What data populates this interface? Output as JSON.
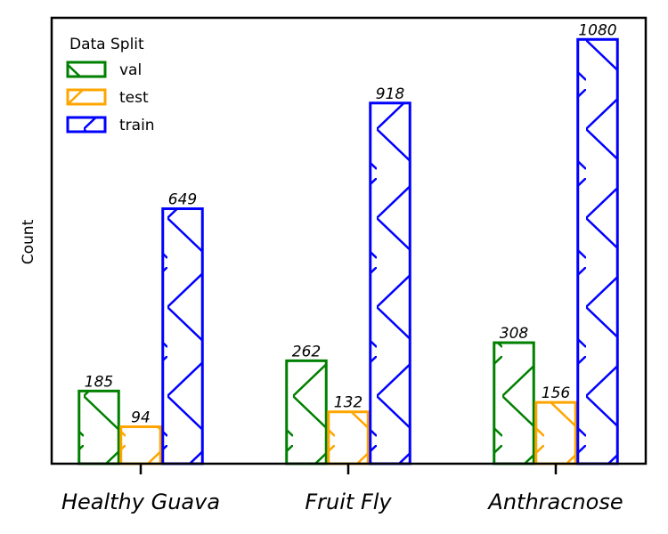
{
  "chart_data": {
    "type": "bar",
    "title": "",
    "xlabel": "",
    "ylabel": "Count",
    "categories": [
      "Healthy Guava",
      "Fruit Fly",
      "Anthracnose"
    ],
    "series": [
      {
        "name": "val",
        "values": [
          185,
          262,
          308
        ],
        "color": "#008000"
      },
      {
        "name": "test",
        "values": [
          94,
          132,
          156
        ],
        "color": "#ffa500"
      },
      {
        "name": "train",
        "values": [
          649,
          918,
          1080
        ],
        "color": "#0000ff"
      }
    ],
    "ylim": [
      0,
      1135
    ],
    "y_ticks_shown": false,
    "grid": false,
    "legend": {
      "title": "Data Split",
      "placement": "top-left"
    }
  }
}
